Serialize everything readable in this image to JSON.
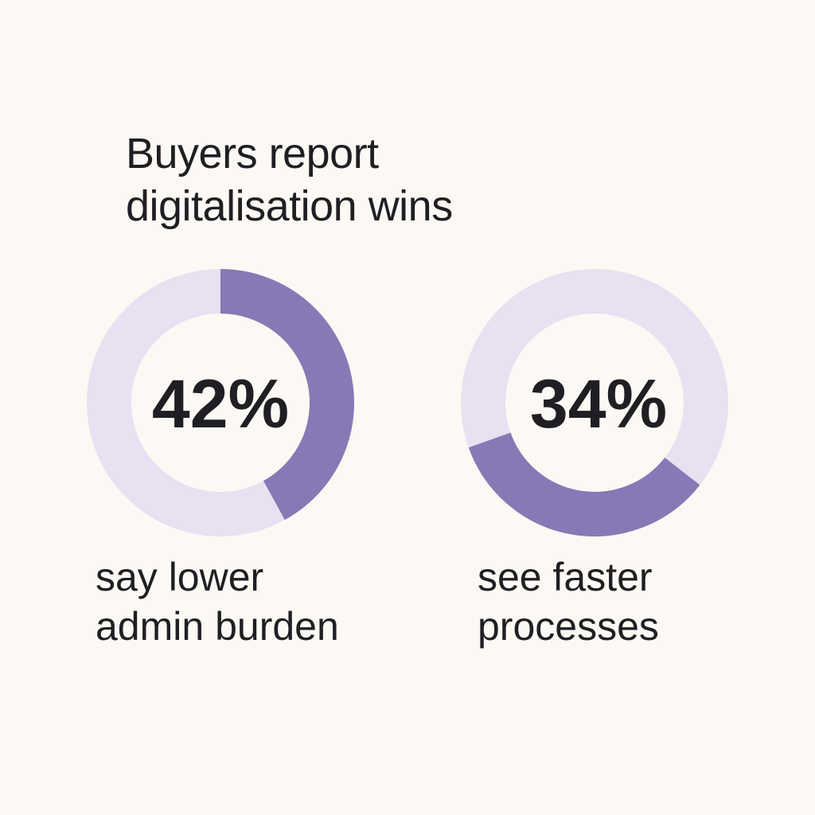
{
  "title": {
    "line1": "Buyers report",
    "line2": "digitalisation wins"
  },
  "colors": {
    "background": "#fcf9f4",
    "track": "#e7e1f1",
    "fill": "#8878b5",
    "text": "#1f1f23"
  },
  "chart_data": [
    {
      "type": "pie",
      "style": "donut",
      "value": 42,
      "unit": "%",
      "center_label": "42%",
      "caption": [
        "say lower",
        "admin burden"
      ]
    },
    {
      "type": "pie",
      "style": "donut",
      "value": 34,
      "unit": "%",
      "center_label": "34%",
      "caption": [
        "see faster",
        "processes"
      ]
    }
  ]
}
